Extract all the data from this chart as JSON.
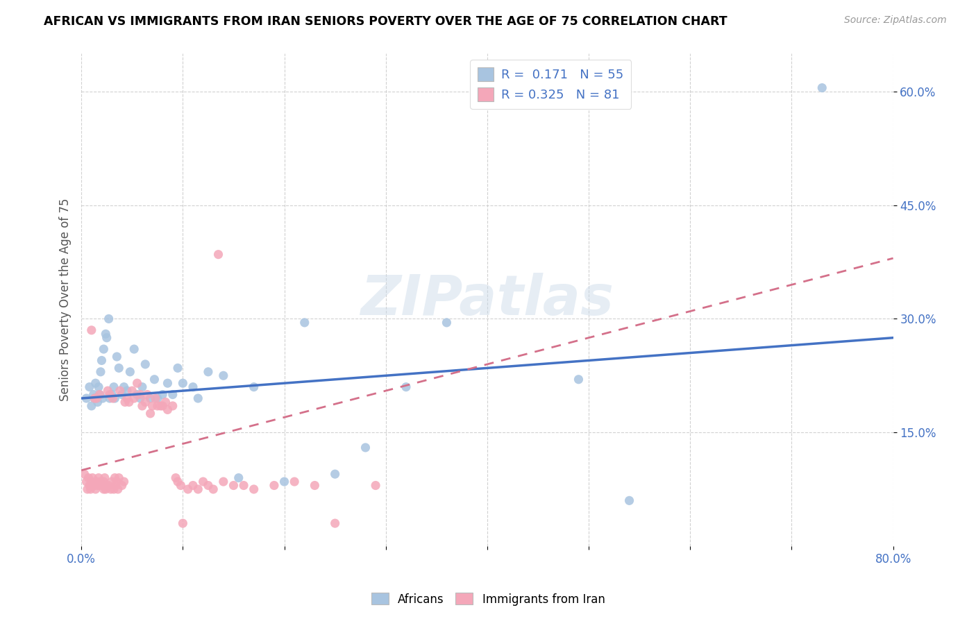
{
  "title": "AFRICAN VS IMMIGRANTS FROM IRAN SENIORS POVERTY OVER THE AGE OF 75 CORRELATION CHART",
  "source": "Source: ZipAtlas.com",
  "ylabel": "Seniors Poverty Over the Age of 75",
  "xlim": [
    0.0,
    0.8
  ],
  "ylim": [
    0.0,
    0.65
  ],
  "xtick_vals": [
    0.0,
    0.1,
    0.2,
    0.3,
    0.4,
    0.5,
    0.6,
    0.7,
    0.8
  ],
  "xticklabels": [
    "0.0%",
    "",
    "",
    "",
    "",
    "",
    "",
    "",
    "80.0%"
  ],
  "ytick_vals": [
    0.15,
    0.3,
    0.45,
    0.6
  ],
  "ytick_labels": [
    "15.0%",
    "30.0%",
    "45.0%",
    "60.0%"
  ],
  "blue_R": 0.171,
  "blue_N": 55,
  "pink_R": 0.325,
  "pink_N": 81,
  "blue_color": "#a8c4e0",
  "pink_color": "#f4a7b9",
  "blue_line_color": "#4472c4",
  "pink_line_color": "#d4708a",
  "watermark": "ZIPatlas",
  "legend_label_blue": "Africans",
  "legend_label_pink": "Immigrants from Iran",
  "blue_line_start_y": 0.195,
  "blue_line_end_y": 0.275,
  "pink_line_start_y": 0.1,
  "pink_line_end_y": 0.38,
  "blue_x": [
    0.005,
    0.008,
    0.01,
    0.012,
    0.013,
    0.014,
    0.015,
    0.016,
    0.017,
    0.018,
    0.019,
    0.02,
    0.021,
    0.022,
    0.024,
    0.025,
    0.027,
    0.028,
    0.03,
    0.032,
    0.033,
    0.035,
    0.037,
    0.04,
    0.042,
    0.045,
    0.048,
    0.052,
    0.055,
    0.058,
    0.06,
    0.063,
    0.068,
    0.072,
    0.075,
    0.08,
    0.085,
    0.09,
    0.095,
    0.1,
    0.11,
    0.115,
    0.125,
    0.14,
    0.155,
    0.17,
    0.2,
    0.22,
    0.25,
    0.28,
    0.32,
    0.36,
    0.49,
    0.54,
    0.73
  ],
  "blue_y": [
    0.195,
    0.21,
    0.185,
    0.2,
    0.195,
    0.215,
    0.195,
    0.19,
    0.21,
    0.2,
    0.23,
    0.245,
    0.195,
    0.26,
    0.28,
    0.275,
    0.3,
    0.195,
    0.2,
    0.21,
    0.195,
    0.25,
    0.235,
    0.2,
    0.21,
    0.205,
    0.23,
    0.26,
    0.2,
    0.195,
    0.21,
    0.24,
    0.195,
    0.22,
    0.195,
    0.2,
    0.215,
    0.2,
    0.235,
    0.215,
    0.21,
    0.195,
    0.23,
    0.225,
    0.09,
    0.21,
    0.085,
    0.295,
    0.095,
    0.13,
    0.21,
    0.295,
    0.22,
    0.06,
    0.605
  ],
  "pink_x": [
    0.003,
    0.005,
    0.006,
    0.007,
    0.008,
    0.009,
    0.01,
    0.01,
    0.011,
    0.012,
    0.013,
    0.013,
    0.014,
    0.015,
    0.015,
    0.016,
    0.017,
    0.018,
    0.018,
    0.019,
    0.02,
    0.021,
    0.022,
    0.022,
    0.023,
    0.024,
    0.025,
    0.026,
    0.027,
    0.028,
    0.029,
    0.03,
    0.031,
    0.032,
    0.033,
    0.034,
    0.035,
    0.036,
    0.037,
    0.038,
    0.04,
    0.042,
    0.043,
    0.045,
    0.047,
    0.05,
    0.052,
    0.055,
    0.058,
    0.06,
    0.063,
    0.065,
    0.068,
    0.07,
    0.073,
    0.075,
    0.078,
    0.08,
    0.083,
    0.085,
    0.09,
    0.093,
    0.095,
    0.098,
    0.1,
    0.105,
    0.11,
    0.115,
    0.12,
    0.125,
    0.13,
    0.135,
    0.14,
    0.15,
    0.16,
    0.17,
    0.19,
    0.21,
    0.23,
    0.25,
    0.29
  ],
  "pink_y": [
    0.095,
    0.085,
    0.075,
    0.09,
    0.08,
    0.075,
    0.085,
    0.285,
    0.09,
    0.08,
    0.08,
    0.195,
    0.075,
    0.085,
    0.195,
    0.08,
    0.09,
    0.08,
    0.2,
    0.085,
    0.08,
    0.08,
    0.075,
    0.085,
    0.09,
    0.075,
    0.08,
    0.205,
    0.08,
    0.2,
    0.075,
    0.085,
    0.195,
    0.075,
    0.09,
    0.08,
    0.085,
    0.075,
    0.09,
    0.205,
    0.08,
    0.085,
    0.19,
    0.195,
    0.19,
    0.205,
    0.195,
    0.215,
    0.2,
    0.185,
    0.19,
    0.2,
    0.175,
    0.185,
    0.195,
    0.185,
    0.185,
    0.185,
    0.19,
    0.18,
    0.185,
    0.09,
    0.085,
    0.08,
    0.03,
    0.075,
    0.08,
    0.075,
    0.085,
    0.08,
    0.075,
    0.385,
    0.085,
    0.08,
    0.08,
    0.075,
    0.08,
    0.085,
    0.08,
    0.03,
    0.08
  ]
}
